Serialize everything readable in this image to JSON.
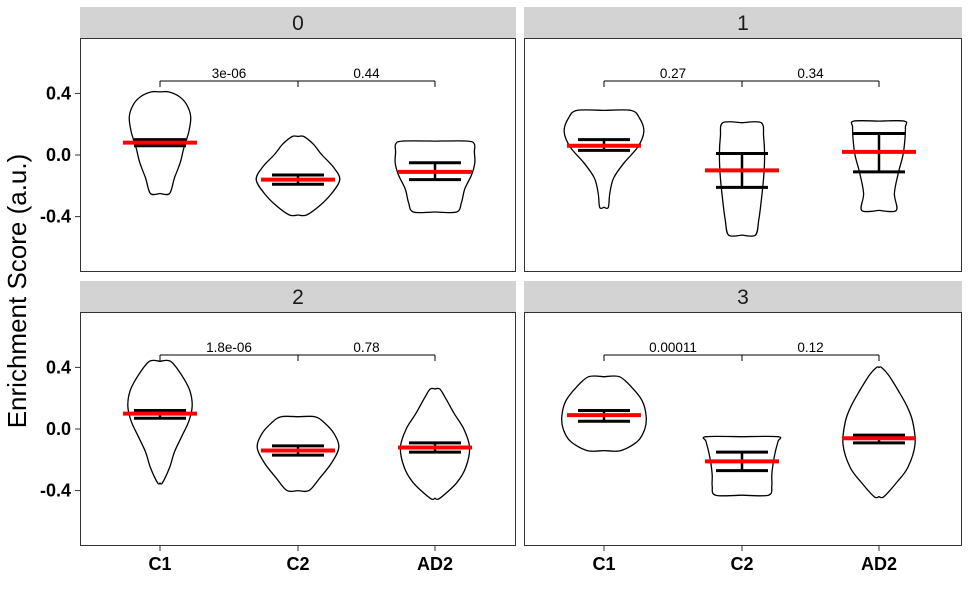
{
  "chart_data": {
    "type": "violin",
    "ylabel": "Enrichment Score (a.u.)",
    "xlabel": "",
    "categories": [
      "C1",
      "C2",
      "AD2"
    ],
    "ylim": [
      -0.76,
      0.76
    ],
    "yticks": [
      0.4,
      0.0,
      -0.4
    ],
    "ytick_labels": [
      "0.4",
      "0.0",
      "-0.4"
    ],
    "facet_layout": "2x2",
    "colors": {
      "mean": "#ff0000",
      "error_bar": "#000000",
      "outline": "#000000",
      "strip": "#d3d3d3",
      "panel_border": "#333333"
    },
    "panels": [
      {
        "label": "0",
        "groups": [
          {
            "name": "C1",
            "min": -0.25,
            "max": 0.41,
            "mean": 0.08,
            "se_low": 0.06,
            "se_high": 0.1,
            "shape": [
              [
                -0.25,
                0.2
              ],
              [
                -0.15,
                0.3
              ],
              [
                -0.05,
                0.42
              ],
              [
                0.05,
                0.5
              ],
              [
                0.15,
                0.6
              ],
              [
                0.25,
                0.64
              ],
              [
                0.33,
                0.55
              ],
              [
                0.38,
                0.4
              ],
              [
                0.41,
                0.18
              ]
            ]
          },
          {
            "name": "C2",
            "min": -0.39,
            "max": 0.12,
            "mean": -0.16,
            "se_low": -0.19,
            "se_high": -0.13,
            "shape": [
              [
                -0.39,
                0.18
              ],
              [
                -0.33,
                0.45
              ],
              [
                -0.25,
                0.7
              ],
              [
                -0.16,
                0.87
              ],
              [
                -0.08,
                0.74
              ],
              [
                0.0,
                0.5
              ],
              [
                0.07,
                0.32
              ],
              [
                0.12,
                0.12
              ]
            ]
          },
          {
            "name": "AD2",
            "min": -0.37,
            "max": 0.09,
            "mean": -0.11,
            "se_low": -0.16,
            "se_high": -0.05,
            "shape": [
              [
                -0.37,
                0.45
              ],
              [
                -0.31,
                0.55
              ],
              [
                -0.22,
                0.62
              ],
              [
                -0.13,
                0.76
              ],
              [
                -0.05,
                0.83
              ],
              [
                0.02,
                0.82
              ],
              [
                0.07,
                0.82
              ],
              [
                0.09,
                0.68
              ]
            ]
          }
        ],
        "comparisons": [
          {
            "from": "C1",
            "to": "C2",
            "label": "3e-06"
          },
          {
            "from": "C2",
            "to": "AD2",
            "label": "0.44"
          }
        ]
      },
      {
        "label": "1",
        "groups": [
          {
            "name": "C1",
            "min": -0.34,
            "max": 0.29,
            "mean": 0.06,
            "se_low": 0.03,
            "se_high": 0.1,
            "shape": [
              [
                -0.34,
                0.09
              ],
              [
                -0.25,
                0.12
              ],
              [
                -0.15,
                0.2
              ],
              [
                -0.05,
                0.42
              ],
              [
                0.05,
                0.7
              ],
              [
                0.15,
                0.83
              ],
              [
                0.24,
                0.74
              ],
              [
                0.29,
                0.56
              ]
            ]
          },
          {
            "name": "C2",
            "min": -0.52,
            "max": 0.21,
            "mean": -0.1,
            "se_low": -0.21,
            "se_high": 0.01,
            "shape": [
              [
                -0.52,
                0.28
              ],
              [
                -0.42,
                0.35
              ],
              [
                -0.3,
                0.4
              ],
              [
                -0.15,
                0.45
              ],
              [
                0.0,
                0.47
              ],
              [
                0.12,
                0.45
              ],
              [
                0.21,
                0.4
              ]
            ]
          },
          {
            "name": "AD2",
            "min": -0.36,
            "max": 0.22,
            "mean": 0.02,
            "se_low": -0.11,
            "se_high": 0.14,
            "shape": [
              [
                -0.36,
                0.36
              ],
              [
                -0.25,
                0.32
              ],
              [
                -0.12,
                0.4
              ],
              [
                0.0,
                0.5
              ],
              [
                0.1,
                0.54
              ],
              [
                0.18,
                0.55
              ],
              [
                0.22,
                0.53
              ]
            ]
          }
        ],
        "comparisons": [
          {
            "from": "C1",
            "to": "C2",
            "label": "0.27"
          },
          {
            "from": "C2",
            "to": "AD2",
            "label": "0.34"
          }
        ]
      },
      {
        "label": "2",
        "groups": [
          {
            "name": "C1",
            "min": -0.35,
            "max": 0.44,
            "mean": 0.1,
            "se_low": 0.07,
            "se_high": 0.12,
            "shape": [
              [
                -0.35,
                0.05
              ],
              [
                -0.25,
                0.2
              ],
              [
                -0.15,
                0.3
              ],
              [
                -0.05,
                0.45
              ],
              [
                0.05,
                0.6
              ],
              [
                0.15,
                0.67
              ],
              [
                0.25,
                0.62
              ],
              [
                0.35,
                0.45
              ],
              [
                0.44,
                0.22
              ]
            ]
          },
          {
            "name": "C2",
            "min": -0.4,
            "max": 0.08,
            "mean": -0.14,
            "se_low": -0.17,
            "se_high": -0.11,
            "shape": [
              [
                -0.4,
                0.23
              ],
              [
                -0.32,
                0.45
              ],
              [
                -0.22,
                0.7
              ],
              [
                -0.12,
                0.85
              ],
              [
                -0.03,
                0.75
              ],
              [
                0.04,
                0.55
              ],
              [
                0.08,
                0.35
              ]
            ]
          },
          {
            "name": "AD2",
            "min": -0.45,
            "max": 0.26,
            "mean": -0.12,
            "se_low": -0.15,
            "se_high": -0.09,
            "shape": [
              [
                -0.45,
                0.1
              ],
              [
                -0.35,
                0.45
              ],
              [
                -0.25,
                0.64
              ],
              [
                -0.12,
                0.72
              ],
              [
                0.0,
                0.6
              ],
              [
                0.1,
                0.4
              ],
              [
                0.2,
                0.22
              ],
              [
                0.26,
                0.1
              ]
            ]
          }
        ],
        "comparisons": [
          {
            "from": "C1",
            "to": "C2",
            "label": "1.8e-06"
          },
          {
            "from": "C2",
            "to": "AD2",
            "label": "0.78"
          }
        ]
      },
      {
        "label": "3",
        "groups": [
          {
            "name": "C1",
            "min": -0.14,
            "max": 0.34,
            "mean": 0.09,
            "se_low": 0.05,
            "se_high": 0.12,
            "shape": [
              [
                -0.14,
                0.35
              ],
              [
                -0.08,
                0.7
              ],
              [
                0.0,
                0.85
              ],
              [
                0.08,
                0.88
              ],
              [
                0.18,
                0.8
              ],
              [
                0.27,
                0.58
              ],
              [
                0.34,
                0.32
              ]
            ]
          },
          {
            "name": "C2",
            "min": -0.43,
            "max": -0.05,
            "mean": -0.21,
            "se_low": -0.27,
            "se_high": -0.15,
            "shape": [
              [
                -0.43,
                0.55
              ],
              [
                -0.37,
                0.62
              ],
              [
                -0.3,
                0.62
              ],
              [
                -0.22,
                0.65
              ],
              [
                -0.14,
                0.7
              ],
              [
                -0.08,
                0.75
              ],
              [
                -0.05,
                0.75
              ]
            ]
          },
          {
            "name": "AD2",
            "min": -0.44,
            "max": 0.4,
            "mean": -0.06,
            "se_low": -0.09,
            "se_high": -0.04,
            "shape": [
              [
                -0.44,
                0.1
              ],
              [
                -0.35,
                0.36
              ],
              [
                -0.25,
                0.6
              ],
              [
                -0.1,
                0.75
              ],
              [
                0.05,
                0.7
              ],
              [
                0.15,
                0.58
              ],
              [
                0.25,
                0.4
              ],
              [
                0.35,
                0.2
              ],
              [
                0.4,
                0.05
              ]
            ]
          }
        ],
        "comparisons": [
          {
            "from": "C1",
            "to": "C2",
            "label": "0.00011"
          },
          {
            "from": "C2",
            "to": "AD2",
            "label": "0.12"
          }
        ]
      }
    ]
  }
}
